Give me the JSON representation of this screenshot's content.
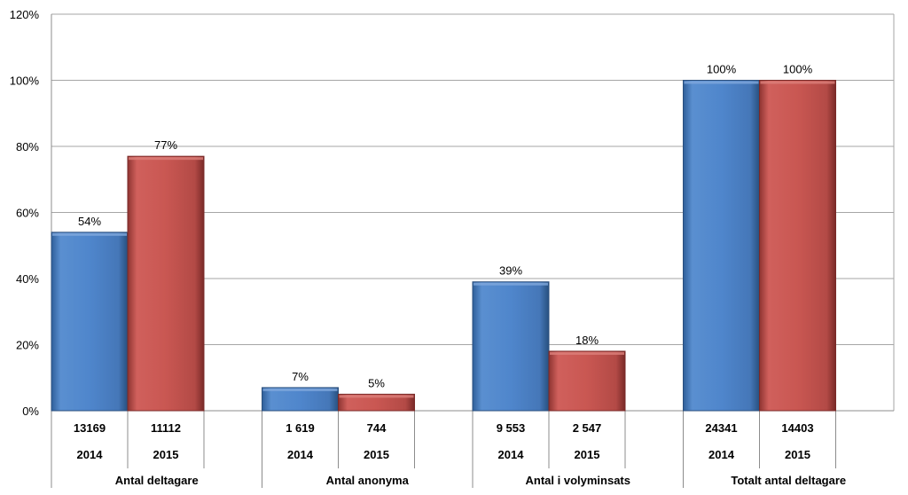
{
  "chart_data": {
    "type": "bar",
    "title": "",
    "xlabel": "",
    "ylabel": "",
    "ylim": [
      0,
      120
    ],
    "yticks": [
      0,
      20,
      40,
      60,
      80,
      100,
      120
    ],
    "ytick_labels": [
      "0%",
      "20%",
      "40%",
      "60%",
      "80%",
      "100%",
      "120%"
    ],
    "grid": true,
    "legend": "none",
    "categories": [
      "Antal deltagare",
      "Antal anonyma",
      "Antal i volyminsats",
      "Totalt antal deltagare"
    ],
    "series": [
      {
        "name": "2014",
        "color": "#4f81bd",
        "values": [
          54,
          7,
          39,
          100
        ],
        "value_labels": [
          "54%",
          "7%",
          "39%",
          "100%"
        ],
        "counts": [
          "13169",
          "1 619",
          "9 553",
          "24341"
        ]
      },
      {
        "name": "2015",
        "color": "#c0504d",
        "values": [
          77,
          5,
          18,
          100
        ],
        "value_labels": [
          "77%",
          "5%",
          "18%",
          "100%"
        ],
        "counts": [
          "11112",
          "744",
          "2 547",
          "14403"
        ]
      }
    ],
    "bar_values_note": "values are percent heights; bar for Antal anonyma 2014 ≈ 6.6, 2015 ≈ 5.0, volyminsats 2015 ≈ 17.5"
  }
}
